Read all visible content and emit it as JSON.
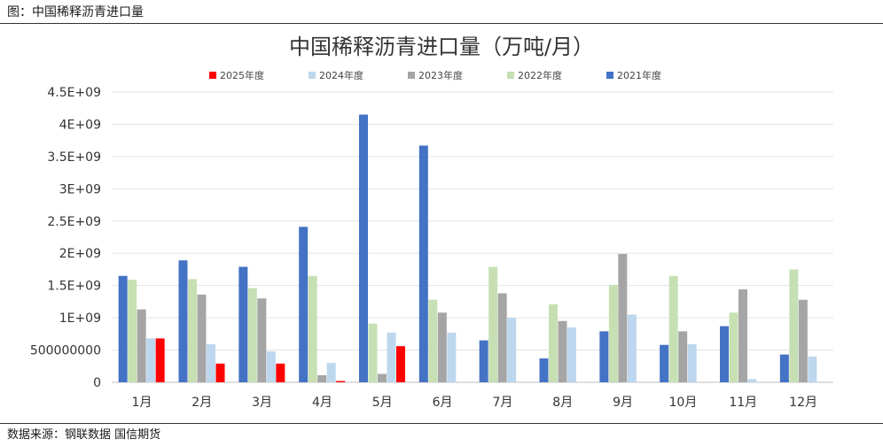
{
  "figure": {
    "caption": "图：中国稀释沥青进口量",
    "source": "数据来源：钢联数据 国信期货"
  },
  "chart_data": {
    "type": "bar",
    "title": "中国稀释沥青进口量（万吨/月）",
    "xlabel": "",
    "ylabel": "",
    "categories": [
      "1月",
      "2月",
      "3月",
      "4月",
      "5月",
      "6月",
      "7月",
      "8月",
      "9月",
      "10月",
      "11月",
      "12月"
    ],
    "ylim": [
      0,
      4500000000
    ],
    "yticks": [
      {
        "value": 0,
        "label": "0"
      },
      {
        "value": 500000000,
        "label": "500000000"
      },
      {
        "value": 1000000000,
        "label": "1E+09"
      },
      {
        "value": 1500000000,
        "label": "1.5E+09"
      },
      {
        "value": 2000000000,
        "label": "2E+09"
      },
      {
        "value": 2500000000,
        "label": "2.5E+09"
      },
      {
        "value": 3000000000,
        "label": "3E+09"
      },
      {
        "value": 3500000000,
        "label": "3.5E+09"
      },
      {
        "value": 4000000000,
        "label": "4E+09"
      },
      {
        "value": 4500000000,
        "label": "4.5E+09"
      }
    ],
    "grid": true,
    "legend_position": "top",
    "series_order_in_group": [
      "2021年度",
      "2022年度",
      "2023年度",
      "2024年度",
      "2025年度"
    ],
    "series": [
      {
        "name": "2025年度",
        "color": "#ff0000",
        "values": [
          680000000,
          290000000,
          290000000,
          20000000,
          560000000,
          null,
          null,
          null,
          null,
          null,
          null,
          null
        ]
      },
      {
        "name": "2024年度",
        "color": "#bdd7ee",
        "values": [
          680000000,
          590000000,
          480000000,
          300000000,
          770000000,
          770000000,
          1000000000,
          850000000,
          1050000000,
          590000000,
          50000000,
          400000000
        ]
      },
      {
        "name": "2023年度",
        "color": "#a5a5a5",
        "values": [
          1130000000,
          1360000000,
          1300000000,
          110000000,
          130000000,
          1080000000,
          1380000000,
          950000000,
          1990000000,
          790000000,
          1440000000,
          1280000000
        ]
      },
      {
        "name": "2022年度",
        "color": "#c6e0b4",
        "values": [
          1590000000,
          1600000000,
          1460000000,
          1650000000,
          910000000,
          1280000000,
          1790000000,
          1210000000,
          1510000000,
          1650000000,
          1080000000,
          1750000000
        ]
      },
      {
        "name": "2021年度",
        "color": "#4472c4",
        "values": [
          1650000000,
          1890000000,
          1790000000,
          2410000000,
          4150000000,
          3670000000,
          650000000,
          370000000,
          790000000,
          580000000,
          870000000,
          430000000
        ]
      }
    ]
  }
}
